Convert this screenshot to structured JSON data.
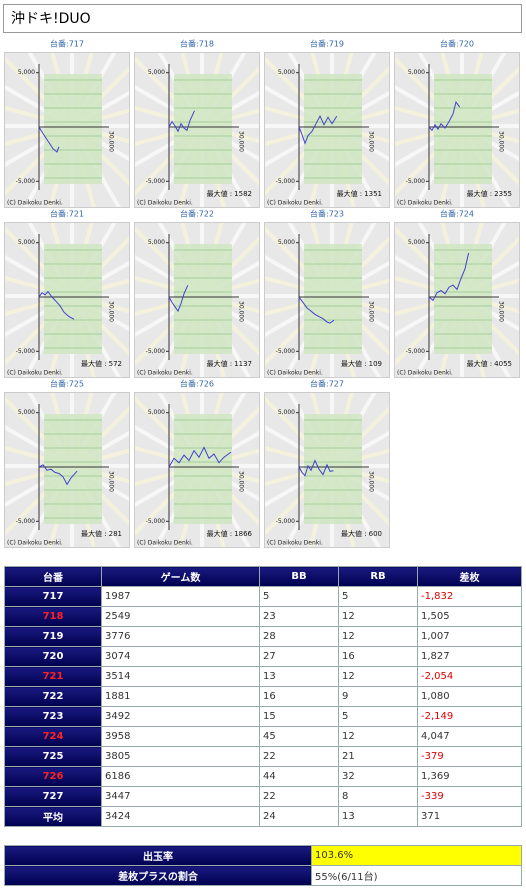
{
  "header": {
    "title": "沖ドキ!DUO"
  },
  "mini_chart_axes": {
    "type": "line",
    "ylim": [
      -5800,
      5800
    ],
    "xlim": [
      0,
      7000
    ],
    "yticks": [
      {
        "value": 5000,
        "label": "5,000"
      },
      {
        "value": -5000,
        "label": "-5,000"
      }
    ],
    "x_label": "30,000",
    "max_label": "最大値 :",
    "copyright": "(C) Daikoku Denki.",
    "color": "#4040d0"
  },
  "charts": [
    {
      "label": "台番:717",
      "x": [
        0,
        400,
        900,
        1400,
        1800,
        1987
      ],
      "y": [
        0,
        -600,
        -1300,
        -2000,
        -2300,
        -1832
      ]
    },
    {
      "label": "台番:718",
      "x": [
        0,
        300,
        600,
        900,
        1200,
        1500,
        1800,
        2100,
        2549
      ],
      "y": [
        0,
        500,
        100,
        -400,
        300,
        -100,
        -300,
        600,
        1505
      ],
      "max": 1582
    },
    {
      "label": "台番:719",
      "x": [
        0,
        300,
        600,
        900,
        1300,
        1700,
        2100,
        2500,
        2900,
        3300,
        3776
      ],
      "y": [
        0,
        -700,
        -1500,
        -800,
        -400,
        300,
        1000,
        200,
        900,
        300,
        1007
      ],
      "max": 1351
    },
    {
      "label": "台番:720",
      "x": [
        0,
        300,
        600,
        900,
        1200,
        1600,
        2000,
        2400,
        2700,
        3074
      ],
      "y": [
        0,
        -300,
        200,
        -200,
        300,
        -100,
        500,
        1200,
        2300,
        1827
      ],
      "max": 2355
    },
    {
      "label": "台番:721",
      "x": [
        0,
        300,
        600,
        900,
        1300,
        1700,
        2100,
        2500,
        3000,
        3514
      ],
      "y": [
        0,
        400,
        200,
        500,
        0,
        -400,
        -800,
        -1400,
        -1800,
        -2054
      ],
      "max": 572
    },
    {
      "label": "台番:722",
      "x": [
        0,
        300,
        600,
        900,
        1200,
        1500,
        1881
      ],
      "y": [
        0,
        -500,
        -900,
        -1300,
        -600,
        300,
        1080
      ],
      "max": 1137
    },
    {
      "label": "台番:723",
      "x": [
        0,
        400,
        800,
        1200,
        1600,
        2000,
        2400,
        2800,
        3100,
        3492
      ],
      "y": [
        0,
        -500,
        -1000,
        -1300,
        -1600,
        -1800,
        -2000,
        -2300,
        -2400,
        -2149
      ],
      "max": 109
    },
    {
      "label": "台番:724",
      "x": [
        0,
        400,
        800,
        1200,
        1600,
        2000,
        2400,
        2800,
        3200,
        3600,
        3958
      ],
      "y": [
        0,
        -300,
        400,
        600,
        300,
        900,
        1100,
        700,
        1700,
        2600,
        4047
      ],
      "max": 4055
    },
    {
      "label": "台番:725",
      "x": [
        0,
        400,
        800,
        1200,
        1600,
        2000,
        2400,
        2800,
        3200,
        3500,
        3805
      ],
      "y": [
        0,
        200,
        -300,
        -200,
        -500,
        -600,
        -900,
        -1600,
        -1000,
        -700,
        -379
      ],
      "max": 281
    },
    {
      "label": "台番:726",
      "x": [
        0,
        500,
        1000,
        1500,
        2000,
        2500,
        3000,
        3500,
        4000,
        4500,
        5000,
        5500,
        6186
      ],
      "y": [
        0,
        800,
        400,
        1100,
        600,
        1500,
        900,
        1800,
        800,
        1200,
        400,
        900,
        1369
      ],
      "max": 1866
    },
    {
      "label": "台番:727",
      "x": [
        0,
        300,
        600,
        900,
        1200,
        1600,
        2000,
        2400,
        2800,
        3100,
        3447
      ],
      "y": [
        0,
        -500,
        -800,
        100,
        -300,
        600,
        -200,
        -700,
        200,
        -400,
        -339
      ],
      "max": 600
    }
  ],
  "table": {
    "header": [
      "台番",
      "ゲーム数",
      "BB",
      "RB",
      "差枚"
    ],
    "rows": [
      [
        "717",
        "1987",
        "5",
        "5",
        "-1,832"
      ],
      [
        "718",
        "2549",
        "23",
        "12",
        "1,505"
      ],
      [
        "719",
        "3776",
        "28",
        "12",
        "1,007"
      ],
      [
        "720",
        "3074",
        "27",
        "16",
        "1,827"
      ],
      [
        "721",
        "3514",
        "13",
        "12",
        "-2,054"
      ],
      [
        "722",
        "1881",
        "16",
        "9",
        "1,080"
      ],
      [
        "723",
        "3492",
        "15",
        "5",
        "-2,149"
      ],
      [
        "724",
        "3958",
        "45",
        "12",
        "4,047"
      ],
      [
        "725",
        "3805",
        "22",
        "21",
        "-379"
      ],
      [
        "726",
        "6186",
        "44",
        "32",
        "1,369"
      ],
      [
        "727",
        "3447",
        "22",
        "8",
        "-339"
      ],
      [
        "平均",
        "3424",
        "24",
        "13",
        "371"
      ]
    ],
    "highlight_rows": [
      1,
      4,
      7,
      9
    ]
  },
  "summary": {
    "rows": [
      [
        "出玉率",
        "103.6%"
      ],
      [
        "差枚プラスの割合",
        "55%(6/11台)"
      ]
    ]
  }
}
